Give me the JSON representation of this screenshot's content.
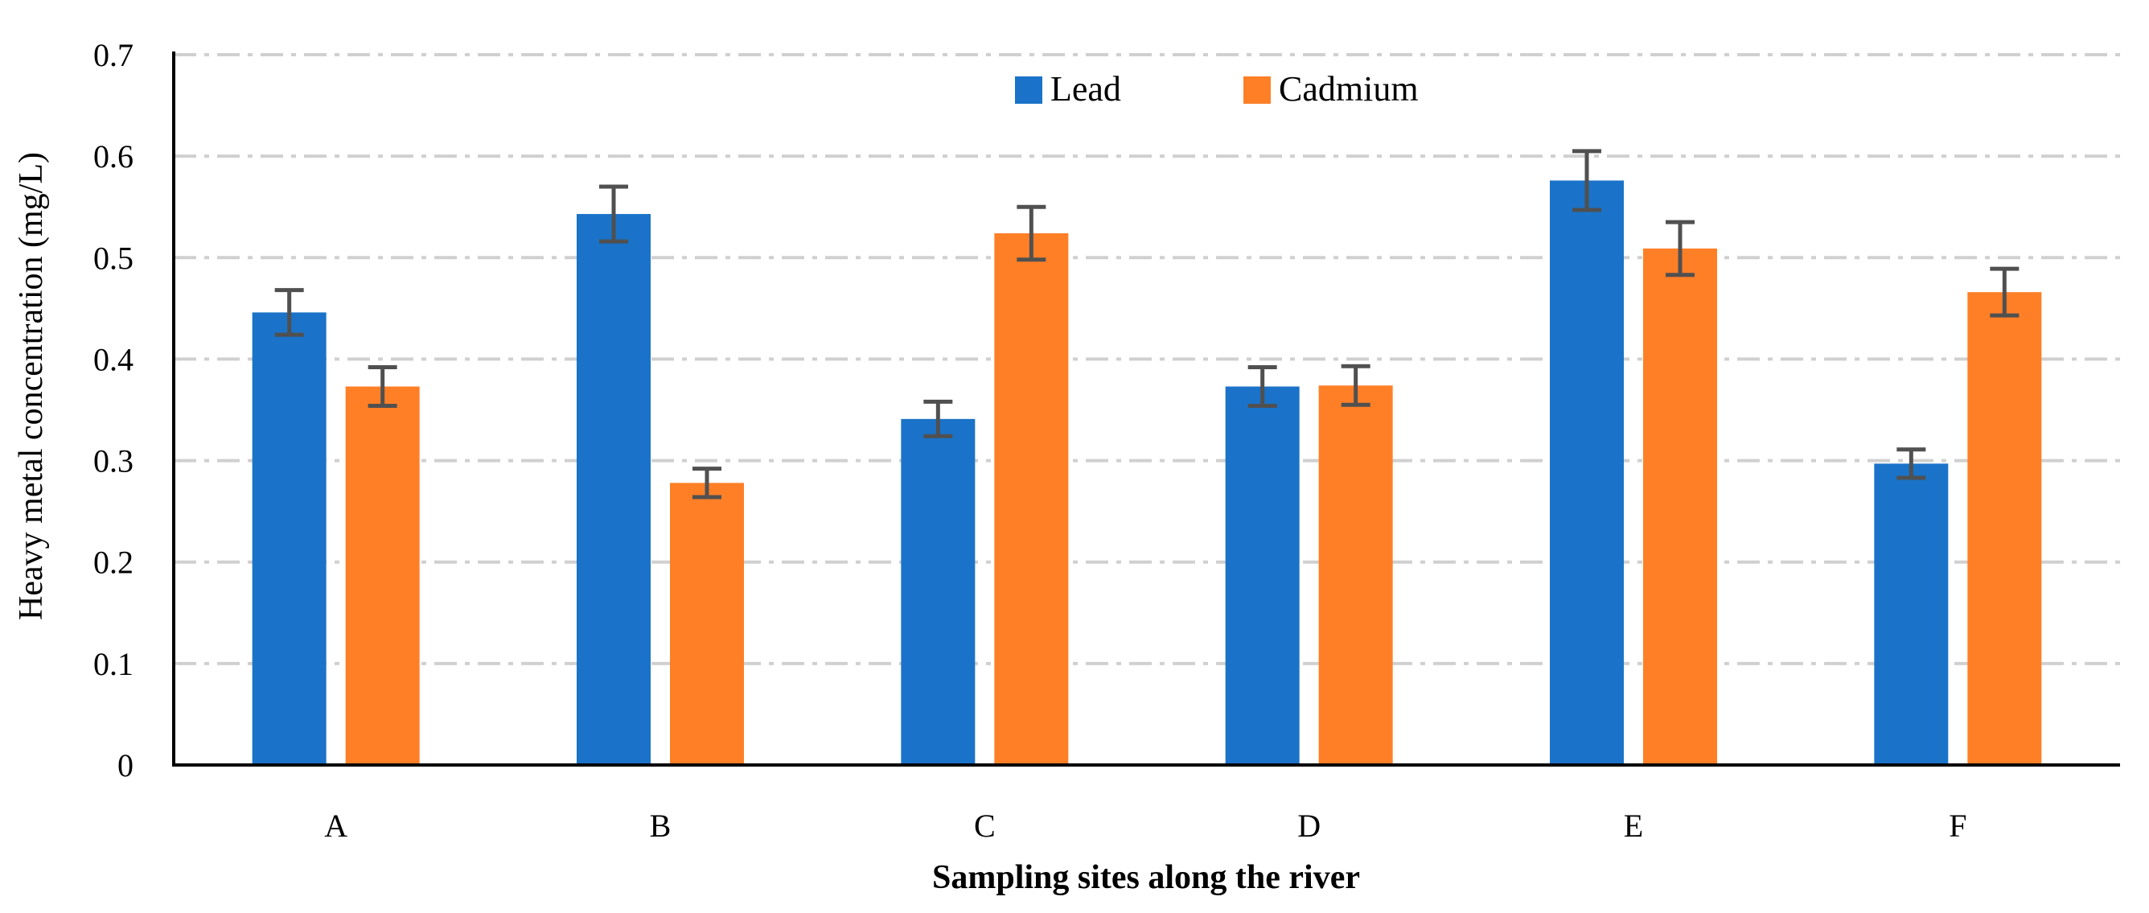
{
  "chart_data": {
    "type": "bar",
    "title": "",
    "xlabel": "Sampling sites along the river",
    "ylabel": "Heavy metal concentration (mg/L)",
    "ylim": [
      0,
      0.7
    ],
    "yticks": [
      0,
      0.1,
      0.2,
      0.3,
      0.4,
      0.5,
      0.6,
      0.7
    ],
    "ytick_labels": [
      "0",
      "0.1",
      "0.2",
      "0.3",
      "0.4",
      "0.5",
      "0.6",
      "0.7"
    ],
    "grid": "horizontal dash-dot",
    "legend_position": "top-center",
    "categories": [
      "A",
      "B",
      "C",
      "D",
      "E",
      "F"
    ],
    "series": [
      {
        "name": "Lead",
        "color": "#1a73c8",
        "values": [
          0.446,
          0.543,
          0.341,
          0.373,
          0.576,
          0.297
        ],
        "errors": [
          0.022,
          0.027,
          0.017,
          0.019,
          0.029,
          0.014
        ]
      },
      {
        "name": "Cadmium",
        "color": "#ff7f27",
        "values": [
          0.373,
          0.278,
          0.524,
          0.374,
          0.509,
          0.466
        ],
        "errors": [
          0.019,
          0.014,
          0.026,
          0.019,
          0.026,
          0.023
        ]
      }
    ],
    "error_bar_color": "#505050",
    "grid_color": "#d0d0d0",
    "axis_color": "#000000"
  }
}
